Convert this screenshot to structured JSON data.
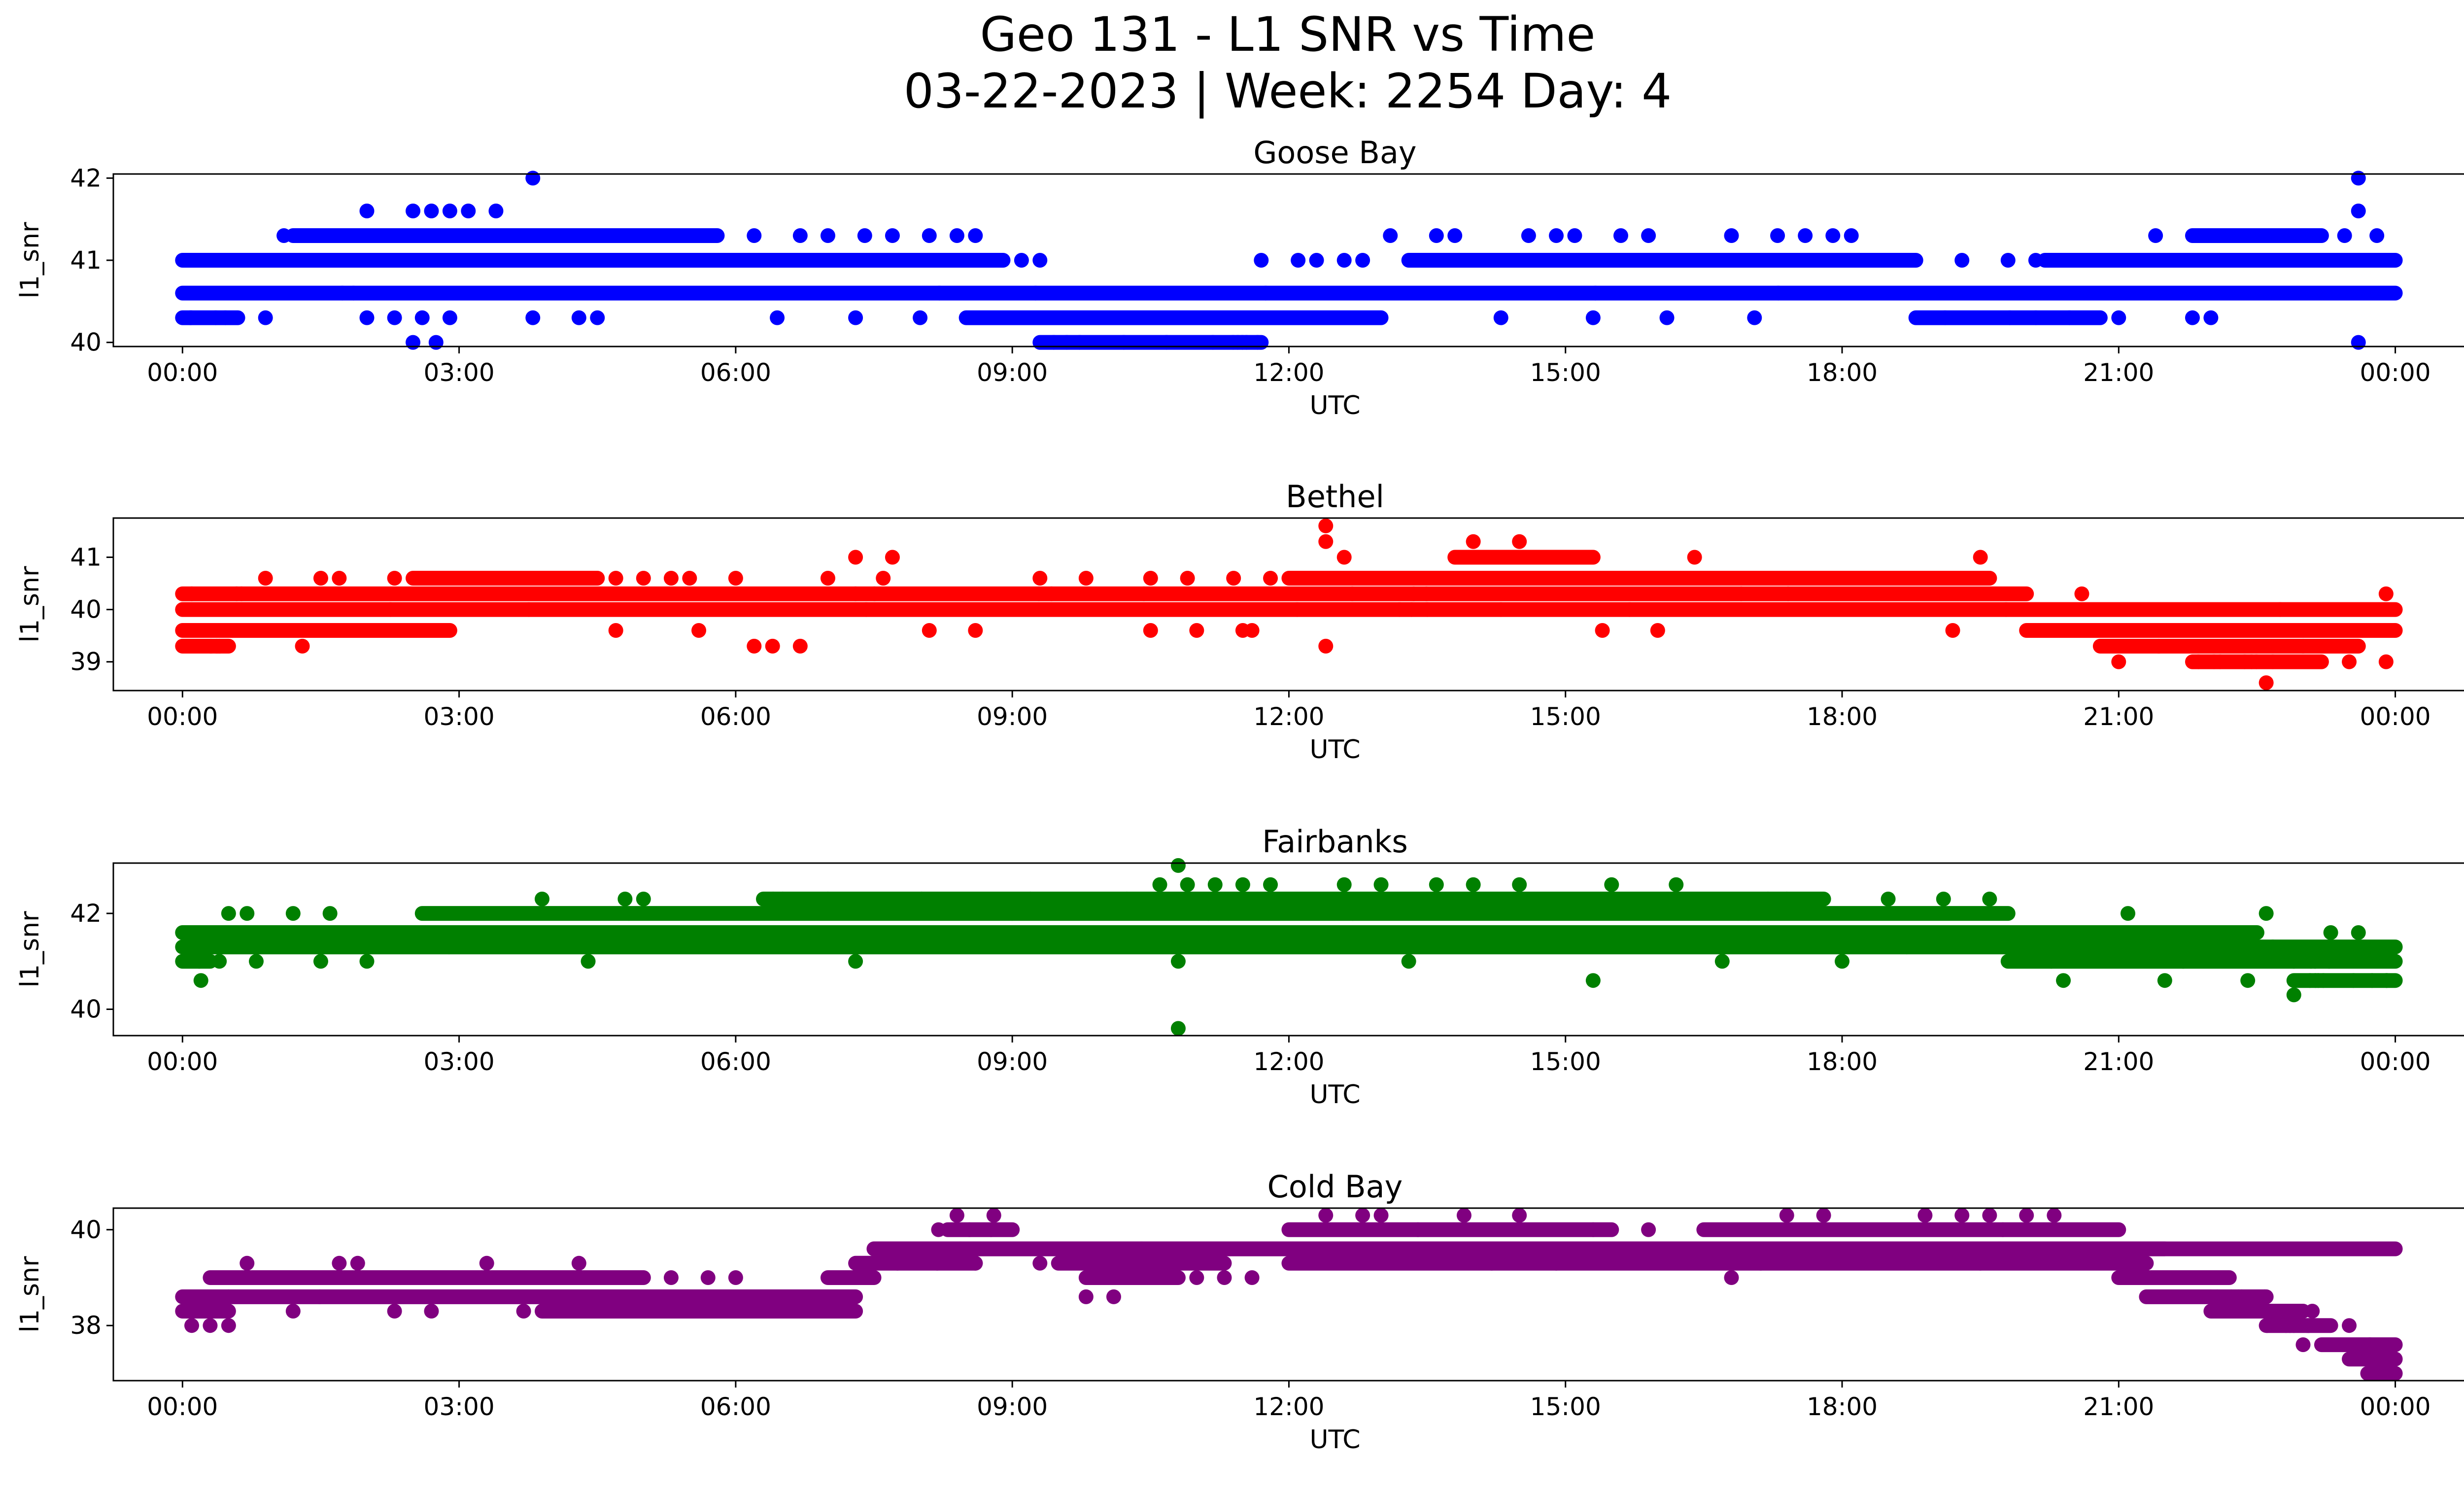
{
  "title_line1": "Geo 131 - L1 SNR vs Time",
  "title_line2": "03-22-2023 | Week: 2254 Day: 4",
  "chart_data": [
    {
      "type": "scatter",
      "title": "Goose Bay",
      "xlabel": "UTC",
      "ylabel": "l1_snr",
      "color": "#0000ff",
      "xlim_hours": [
        -0.75,
        25.75
      ],
      "ylim": [
        39.95,
        42.05
      ],
      "yticks": [
        40,
        41,
        42
      ],
      "xtick_labels": [
        "00:00",
        "03:00",
        "06:00",
        "09:00",
        "12:00",
        "15:00",
        "18:00",
        "21:00",
        "00:00"
      ],
      "levels": [
        40.0,
        40.3,
        40.6,
        41.0,
        41.3,
        41.6,
        42.0
      ],
      "bands": [
        {
          "y": 40.6,
          "x": [
            [
              0,
              24
            ]
          ]
        },
        {
          "y": 41.0,
          "x": [
            [
              0,
              8.9
            ],
            [
              13.3,
              18.8
            ],
            [
              20.2,
              24
            ]
          ]
        },
        {
          "y": 40.3,
          "x": [
            [
              0,
              0.6
            ],
            [
              8.5,
              13.0
            ],
            [
              18.8,
              20.8
            ]
          ]
        },
        {
          "y": 41.3,
          "x": [
            [
              1.2,
              5.8
            ],
            [
              21.8,
              23.2
            ]
          ]
        },
        {
          "y": 40.0,
          "x": [
            [
              9.3,
              11.7
            ]
          ]
        }
      ],
      "points": [
        [
          0.9,
          40.3
        ],
        [
          1.1,
          41.3
        ],
        [
          1.35,
          41.0
        ],
        [
          2.0,
          41.6
        ],
        [
          2.0,
          40.3
        ],
        [
          2.5,
          41.6
        ],
        [
          2.7,
          41.6
        ],
        [
          2.9,
          41.6
        ],
        [
          3.1,
          41.6
        ],
        [
          3.4,
          41.6
        ],
        [
          3.8,
          42.0
        ],
        [
          3.8,
          40.3
        ],
        [
          2.5,
          40.0
        ],
        [
          2.75,
          40.0
        ],
        [
          2.3,
          40.3
        ],
        [
          2.6,
          40.3
        ],
        [
          2.9,
          40.3
        ],
        [
          4.3,
          40.3
        ],
        [
          4.5,
          40.3
        ],
        [
          6.2,
          41.3
        ],
        [
          6.45,
          40.3
        ],
        [
          6.7,
          41.3
        ],
        [
          7.0,
          41.3
        ],
        [
          7.3,
          40.3
        ],
        [
          7.4,
          41.3
        ],
        [
          7.7,
          41.3
        ],
        [
          8.0,
          40.3
        ],
        [
          8.1,
          41.3
        ],
        [
          8.4,
          41.3
        ],
        [
          8.6,
          41.3
        ],
        [
          9.1,
          41.0
        ],
        [
          9.3,
          41.0
        ],
        [
          11.7,
          41.0
        ],
        [
          12.1,
          41.0
        ],
        [
          12.3,
          41.0
        ],
        [
          12.6,
          41.0
        ],
        [
          12.8,
          41.0
        ],
        [
          13.1,
          41.3
        ],
        [
          13.6,
          41.3
        ],
        [
          13.8,
          41.3
        ],
        [
          14.3,
          40.3
        ],
        [
          14.6,
          41.3
        ],
        [
          14.9,
          41.3
        ],
        [
          15.1,
          41.3
        ],
        [
          15.3,
          40.3
        ],
        [
          15.6,
          41.3
        ],
        [
          15.9,
          41.3
        ],
        [
          16.1,
          40.3
        ],
        [
          16.8,
          41.3
        ],
        [
          17.05,
          40.3
        ],
        [
          17.3,
          41.3
        ],
        [
          17.6,
          41.3
        ],
        [
          17.9,
          41.3
        ],
        [
          18.1,
          41.3
        ],
        [
          19.3,
          41.0
        ],
        [
          19.8,
          41.0
        ],
        [
          20.1,
          41.0
        ],
        [
          21.0,
          40.3
        ],
        [
          21.4,
          41.3
        ],
        [
          21.8,
          40.3
        ],
        [
          22.0,
          40.3
        ],
        [
          22.6,
          41.3
        ],
        [
          22.9,
          41.0
        ],
        [
          23.1,
          41.3
        ],
        [
          23.3,
          41.0
        ],
        [
          23.6,
          42.0
        ],
        [
          23.6,
          41.6
        ],
        [
          23.6,
          40.0
        ],
        [
          23.45,
          41.3
        ],
        [
          23.8,
          41.3
        ]
      ]
    },
    {
      "type": "scatter",
      "title": "Bethel",
      "xlabel": "UTC",
      "ylabel": "l1_snr",
      "color": "#ff0000",
      "xlim_hours": [
        -0.75,
        25.75
      ],
      "ylim": [
        38.45,
        41.75
      ],
      "yticks": [
        39,
        40,
        41
      ],
      "xtick_labels": [
        "00:00",
        "03:00",
        "06:00",
        "09:00",
        "12:00",
        "15:00",
        "18:00",
        "21:00",
        "00:00"
      ],
      "levels": [
        38.6,
        39.0,
        39.3,
        39.6,
        40.0,
        40.3,
        40.6,
        41.0,
        41.3,
        41.6
      ],
      "bands": [
        {
          "y": 40.0,
          "x": [
            [
              0,
              24
            ]
          ]
        },
        {
          "y": 40.3,
          "x": [
            [
              0,
              20.0
            ]
          ]
        },
        {
          "y": 39.6,
          "x": [
            [
              0,
              2.9
            ],
            [
              20.0,
              24
            ]
          ]
        },
        {
          "y": 40.6,
          "x": [
            [
              2.5,
              4.5
            ],
            [
              12.0,
              19.6
            ]
          ]
        },
        {
          "y": 41.0,
          "x": [
            [
              13.8,
              15.3
            ]
          ]
        },
        {
          "y": 39.3,
          "x": [
            [
              0,
              0.5
            ],
            [
              20.8,
              23.6
            ]
          ]
        },
        {
          "y": 39.0,
          "x": [
            [
              21.8,
              23.2
            ]
          ]
        }
      ],
      "points": [
        [
          0.1,
          40.3
        ],
        [
          0.4,
          39.3
        ],
        [
          0.9,
          40.6
        ],
        [
          1.3,
          39.3
        ],
        [
          1.5,
          40.6
        ],
        [
          1.7,
          40.6
        ],
        [
          2.3,
          40.6
        ],
        [
          4.7,
          40.6
        ],
        [
          4.7,
          39.6
        ],
        [
          5.0,
          40.6
        ],
        [
          5.3,
          40.6
        ],
        [
          5.5,
          40.6
        ],
        [
          5.6,
          39.6
        ],
        [
          6.0,
          40.6
        ],
        [
          6.2,
          39.3
        ],
        [
          6.4,
          39.3
        ],
        [
          6.7,
          39.3
        ],
        [
          7.0,
          40.6
        ],
        [
          7.3,
          41.0
        ],
        [
          7.6,
          40.6
        ],
        [
          7.7,
          41.0
        ],
        [
          8.1,
          39.6
        ],
        [
          8.6,
          39.6
        ],
        [
          9.3,
          40.6
        ],
        [
          9.8,
          40.6
        ],
        [
          10.5,
          40.6
        ],
        [
          10.5,
          39.6
        ],
        [
          10.9,
          40.6
        ],
        [
          11.0,
          39.6
        ],
        [
          11.4,
          40.6
        ],
        [
          11.5,
          39.6
        ],
        [
          11.6,
          39.6
        ],
        [
          11.8,
          40.6
        ],
        [
          12.4,
          41.6
        ],
        [
          12.4,
          41.3
        ],
        [
          12.4,
          39.3
        ],
        [
          12.6,
          41.0
        ],
        [
          13.2,
          40.0
        ],
        [
          13.5,
          40.0
        ],
        [
          14.3,
          40.0
        ],
        [
          14.5,
          41.3
        ],
        [
          14.0,
          41.3
        ],
        [
          15.4,
          39.6
        ],
        [
          16.0,
          39.6
        ],
        [
          16.4,
          41.0
        ],
        [
          19.2,
          39.6
        ],
        [
          19.5,
          41.0
        ],
        [
          20.6,
          40.3
        ],
        [
          21.0,
          39.0
        ],
        [
          22.1,
          39.0
        ],
        [
          22.6,
          38.6
        ],
        [
          23.0,
          39.3
        ],
        [
          23.5,
          39.0
        ],
        [
          23.9,
          40.3
        ],
        [
          23.9,
          39.0
        ]
      ]
    },
    {
      "type": "scatter",
      "title": "Fairbanks",
      "xlabel": "UTC",
      "ylabel": "l1_snr",
      "color": "#008000",
      "xlim_hours": [
        -0.75,
        25.75
      ],
      "ylim": [
        39.45,
        43.05
      ],
      "yticks": [
        40,
        42
      ],
      "xtick_labels": [
        "00:00",
        "03:00",
        "06:00",
        "09:00",
        "12:00",
        "15:00",
        "18:00",
        "21:00",
        "00:00"
      ],
      "levels": [
        39.6,
        40.3,
        40.6,
        41.0,
        41.3,
        41.6,
        42.0,
        42.3,
        42.6,
        43.0
      ],
      "bands": [
        {
          "y": 41.6,
          "x": [
            [
              0,
              22.5
            ]
          ]
        },
        {
          "y": 41.3,
          "x": [
            [
              0,
              24
            ]
          ]
        },
        {
          "y": 42.0,
          "x": [
            [
              2.6,
              19.8
            ]
          ]
        },
        {
          "y": 42.3,
          "x": [
            [
              6.3,
              17.8
            ]
          ]
        },
        {
          "y": 41.0,
          "x": [
            [
              0,
              0.3
            ],
            [
              19.8,
              22.9
            ],
            [
              22.9,
              24
            ]
          ]
        },
        {
          "y": 40.6,
          "x": [
            [
              22.9,
              24
            ]
          ]
        }
      ],
      "points": [
        [
          0.2,
          40.6
        ],
        [
          0.4,
          41.0
        ],
        [
          0.5,
          42.0
        ],
        [
          0.7,
          42.0
        ],
        [
          0.8,
          41.0
        ],
        [
          1.2,
          42.0
        ],
        [
          1.5,
          41.0
        ],
        [
          1.6,
          42.0
        ],
        [
          2.0,
          41.0
        ],
        [
          3.9,
          42.3
        ],
        [
          4.4,
          41.0
        ],
        [
          4.8,
          42.3
        ],
        [
          5.0,
          42.3
        ],
        [
          7.3,
          41.0
        ],
        [
          10.8,
          43.0
        ],
        [
          10.8,
          39.6
        ],
        [
          10.8,
          41.0
        ],
        [
          10.6,
          42.6
        ],
        [
          10.9,
          42.6
        ],
        [
          11.2,
          42.6
        ],
        [
          11.5,
          42.6
        ],
        [
          11.8,
          42.6
        ],
        [
          12.6,
          42.6
        ],
        [
          13.0,
          42.6
        ],
        [
          13.3,
          41.0
        ],
        [
          13.6,
          42.6
        ],
        [
          14.0,
          42.6
        ],
        [
          14.5,
          42.6
        ],
        [
          15.3,
          40.6
        ],
        [
          15.5,
          42.6
        ],
        [
          16.2,
          42.6
        ],
        [
          16.7,
          41.0
        ],
        [
          17.4,
          42.3
        ],
        [
          18.0,
          41.0
        ],
        [
          18.5,
          42.3
        ],
        [
          19.1,
          42.3
        ],
        [
          19.6,
          42.3
        ],
        [
          20.4,
          40.6
        ],
        [
          21.1,
          42.0
        ],
        [
          21.5,
          40.6
        ],
        [
          21.7,
          41.0
        ],
        [
          22.4,
          40.6
        ],
        [
          22.6,
          42.0
        ],
        [
          22.9,
          40.3
        ],
        [
          23.3,
          41.6
        ],
        [
          23.6,
          41.6
        ]
      ]
    },
    {
      "type": "scatter",
      "title": "Cold Bay",
      "xlabel": "UTC",
      "ylabel": "l1_snr",
      "color": "#800080",
      "xlim_hours": [
        -0.75,
        25.75
      ],
      "ylim": [
        36.85,
        40.45
      ],
      "yticks": [
        38,
        40
      ],
      "xtick_labels": [
        "00:00",
        "03:00",
        "06:00",
        "09:00",
        "12:00",
        "15:00",
        "18:00",
        "21:00",
        "00:00"
      ],
      "levels": [
        37.0,
        37.3,
        37.6,
        38.0,
        38.3,
        38.6,
        39.0,
        39.3,
        39.6,
        40.0,
        40.3
      ],
      "bands": [
        {
          "y": 38.6,
          "x": [
            [
              0,
              7.3
            ]
          ]
        },
        {
          "y": 38.3,
          "x": [
            [
              0,
              0.5
            ],
            [
              3.9,
              7.3
            ]
          ]
        },
        {
          "y": 39.0,
          "x": [
            [
              0.3,
              5.0
            ],
            [
              7.0,
              7.5
            ],
            [
              9.8,
              10.8
            ],
            [
              21.0,
              22.2
            ]
          ]
        },
        {
          "y": 39.3,
          "x": [
            [
              7.3,
              8.6
            ],
            [
              9.5,
              11.3
            ],
            [
              12.0,
              21.3
            ]
          ]
        },
        {
          "y": 39.6,
          "x": [
            [
              7.5,
              24.0
            ],
            [
              7.5,
              21.5
            ]
          ]
        },
        {
          "y": 40.0,
          "x": [
            [
              8.3,
              9.0
            ],
            [
              12.0,
              15.5
            ],
            [
              16.5,
              21.0
            ]
          ]
        },
        {
          "y": 38.6,
          "x": [
            [
              21.3,
              22.6
            ]
          ]
        },
        {
          "y": 38.3,
          "x": [
            [
              22.0,
              23.0
            ]
          ]
        },
        {
          "y": 38.0,
          "x": [
            [
              22.6,
              23.3
            ]
          ]
        },
        {
          "y": 37.6,
          "x": [
            [
              23.2,
              24.0
            ]
          ]
        },
        {
          "y": 37.3,
          "x": [
            [
              23.5,
              24.0
            ]
          ]
        },
        {
          "y": 37.0,
          "x": [
            [
              23.7,
              24.0
            ]
          ]
        }
      ],
      "points": [
        [
          0.1,
          38.0
        ],
        [
          0.3,
          38.0
        ],
        [
          0.5,
          38.0
        ],
        [
          0.7,
          39.3
        ],
        [
          1.2,
          38.3
        ],
        [
          1.7,
          39.3
        ],
        [
          1.9,
          39.3
        ],
        [
          2.3,
          38.3
        ],
        [
          2.7,
          38.3
        ],
        [
          3.3,
          39.3
        ],
        [
          3.7,
          38.3
        ],
        [
          4.3,
          39.3
        ],
        [
          5.3,
          39.0
        ],
        [
          5.7,
          39.0
        ],
        [
          6.0,
          39.0
        ],
        [
          8.2,
          40.0
        ],
        [
          8.4,
          40.3
        ],
        [
          8.8,
          40.3
        ],
        [
          8.6,
          39.3
        ],
        [
          9.3,
          39.3
        ],
        [
          9.8,
          38.6
        ],
        [
          10.1,
          38.6
        ],
        [
          10.4,
          39.6
        ],
        [
          11.0,
          39.0
        ],
        [
          11.3,
          39.0
        ],
        [
          11.6,
          39.0
        ],
        [
          12.4,
          40.3
        ],
        [
          12.8,
          40.3
        ],
        [
          13.0,
          40.3
        ],
        [
          13.4,
          40.0
        ],
        [
          13.9,
          40.3
        ],
        [
          14.5,
          40.3
        ],
        [
          14.2,
          39.3
        ],
        [
          14.9,
          39.3
        ],
        [
          15.3,
          40.0
        ],
        [
          15.9,
          40.0
        ],
        [
          16.8,
          39.0
        ],
        [
          17.4,
          40.3
        ],
        [
          17.8,
          40.3
        ],
        [
          18.9,
          40.3
        ],
        [
          19.3,
          40.3
        ],
        [
          19.6,
          40.3
        ],
        [
          20.0,
          40.3
        ],
        [
          20.3,
          40.3
        ],
        [
          19.5,
          39.3
        ],
        [
          22.3,
          38.6
        ],
        [
          22.7,
          38.3
        ],
        [
          22.9,
          38.0
        ],
        [
          23.0,
          37.6
        ],
        [
          23.1,
          38.3
        ],
        [
          23.5,
          38.0
        ],
        [
          23.9,
          37.0
        ]
      ]
    }
  ]
}
